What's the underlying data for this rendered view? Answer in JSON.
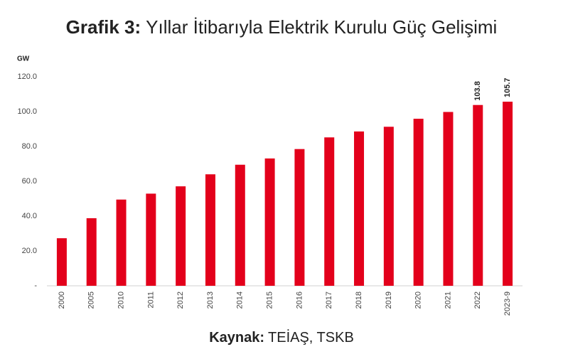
{
  "chart_data": {
    "type": "bar",
    "title_prefix": "Grafik 3:",
    "title": "Yıllar İtibarıyla Elektrik Kurulu Güç Gelişimi",
    "y_label": "GW",
    "source_prefix": "Kaynak:",
    "source": "TEİAŞ, TSKB",
    "categories": [
      "2000",
      "2005",
      "2010",
      "2011",
      "2012",
      "2013",
      "2014",
      "2015",
      "2016",
      "2017",
      "2018",
      "2019",
      "2020",
      "2021",
      "2022",
      "2023-9"
    ],
    "values": [
      27.3,
      38.8,
      49.5,
      52.9,
      57.1,
      64.0,
      69.5,
      73.1,
      78.5,
      85.2,
      88.6,
      91.3,
      95.9,
      99.8,
      103.8,
      105.7
    ],
    "value_labels": [
      null,
      null,
      null,
      null,
      null,
      null,
      null,
      null,
      null,
      null,
      null,
      null,
      null,
      null,
      "103.8",
      "105.7"
    ],
    "color": "#e3001b",
    "ylim": [
      0,
      120
    ],
    "yticks": [
      {
        "value": 0,
        "label": "-"
      },
      {
        "value": 20,
        "label": "20.0"
      },
      {
        "value": 40,
        "label": "40.0"
      },
      {
        "value": 60,
        "label": "60.0"
      },
      {
        "value": 80,
        "label": "80.0"
      },
      {
        "value": 100,
        "label": "100.0"
      },
      {
        "value": 120,
        "label": "120.0"
      }
    ],
    "grid": false
  }
}
